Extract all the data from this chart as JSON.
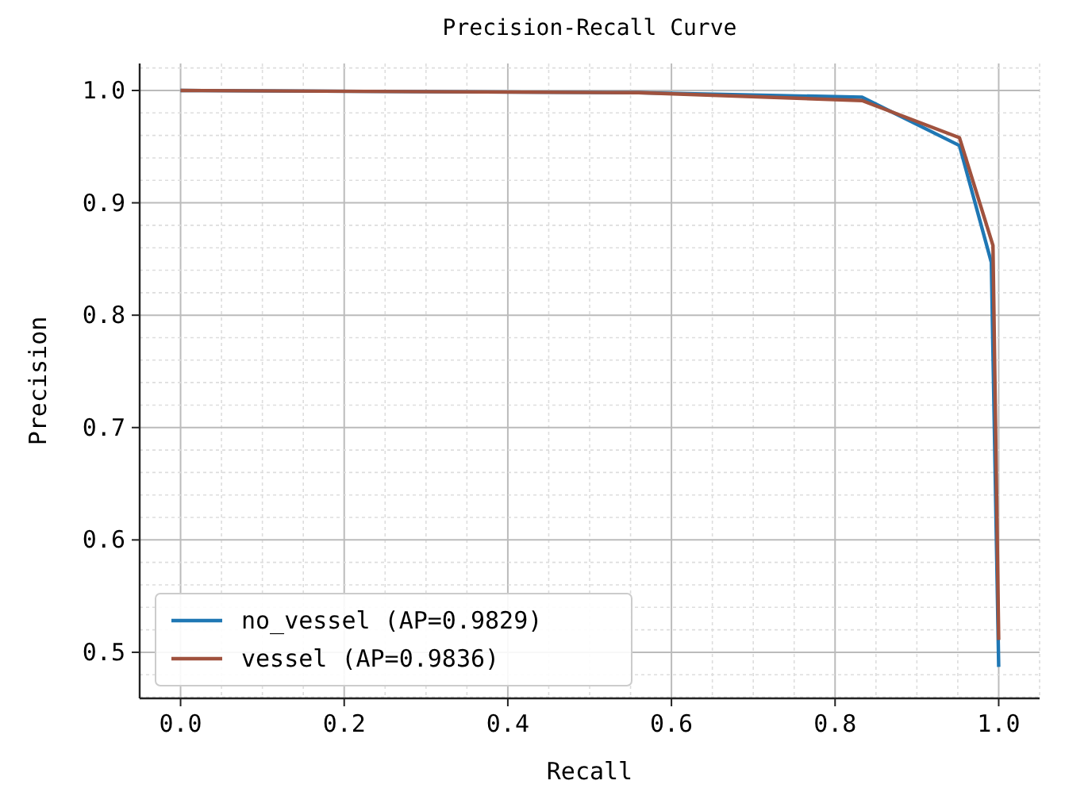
{
  "chart_data": {
    "type": "line",
    "title": "Precision-Recall Curve",
    "xlabel": "Recall",
    "ylabel": "Precision",
    "series": [
      {
        "name": "no_vessel (AP=0.9829)",
        "color": "#1f77b4",
        "x": [
          0,
          0.56,
          0.833,
          0.952,
          0.991,
          1.0
        ],
        "values": [
          1.0,
          0.998,
          0.994,
          0.951,
          0.847,
          0.487
        ]
      },
      {
        "name": "vessel (AP=0.9836)",
        "color": "#a0523e",
        "x": [
          0,
          0.56,
          0.833,
          0.952,
          0.993,
          1.0
        ],
        "values": [
          1.0,
          0.998,
          0.991,
          0.958,
          0.862,
          0.511
        ]
      }
    ],
    "xlim": [
      -0.05,
      1.05
    ],
    "ylim": [
      0.459,
      1.024
    ],
    "xticks": [
      {
        "value": -0.05,
        "label": null
      },
      {
        "value": 0,
        "label": "0.0"
      },
      {
        "value": 0.05,
        "label": null
      },
      {
        "value": 0.1,
        "label": null
      },
      {
        "value": 0.15,
        "label": null
      },
      0.2,
      {
        "value": 0.25,
        "label": null
      },
      {
        "value": 0.3,
        "label": null
      },
      {
        "value": 0.35,
        "label": null
      },
      0.4,
      {
        "value": 0.45,
        "label": null
      },
      {
        "value": 0.5,
        "label": null
      },
      {
        "value": 0.55,
        "label": null
      },
      0.6,
      {
        "value": 0.65,
        "label": null
      },
      {
        "value": 0.7,
        "label": null
      },
      {
        "value": 0.75,
        "label": null
      },
      0.8,
      {
        "value": 0.85,
        "label": null
      },
      {
        "value": 0.9,
        "label": null
      },
      {
        "value": 0.95,
        "label": null
      },
      {
        "value": 1,
        "label": "1.0"
      },
      {
        "value": 1.05,
        "label": null
      }
    ],
    "yticks": [
      {
        "value": 0.46,
        "label": null
      },
      {
        "value": 0.48,
        "label": null
      },
      0.5,
      {
        "value": 0.52,
        "label": null
      },
      {
        "value": 0.54,
        "label": null
      },
      {
        "value": 0.56,
        "label": null
      },
      {
        "value": 0.58,
        "label": null
      },
      0.6,
      {
        "value": 0.62,
        "label": null
      },
      {
        "value": 0.64,
        "label": null
      },
      {
        "value": 0.66,
        "label": null
      },
      {
        "value": 0.68,
        "label": null
      },
      0.7,
      {
        "value": 0.72,
        "label": null
      },
      {
        "value": 0.74,
        "label": null
      },
      {
        "value": 0.76,
        "label": null
      },
      {
        "value": 0.78,
        "label": null
      },
      0.8,
      {
        "value": 0.82,
        "label": null
      },
      {
        "value": 0.84,
        "label": null
      },
      {
        "value": 0.86,
        "label": null
      },
      {
        "value": 0.88,
        "label": null
      },
      0.9,
      {
        "value": 0.92,
        "label": null
      },
      {
        "value": 0.94,
        "label": null
      },
      {
        "value": 0.96,
        "label": null
      },
      {
        "value": 0.98,
        "label": null
      },
      {
        "value": 1,
        "label": "1.0"
      },
      {
        "value": 1.02,
        "label": null
      }
    ],
    "grid": true,
    "legend": "bottom left",
    "marker": "none",
    "line_style": "solid"
  }
}
